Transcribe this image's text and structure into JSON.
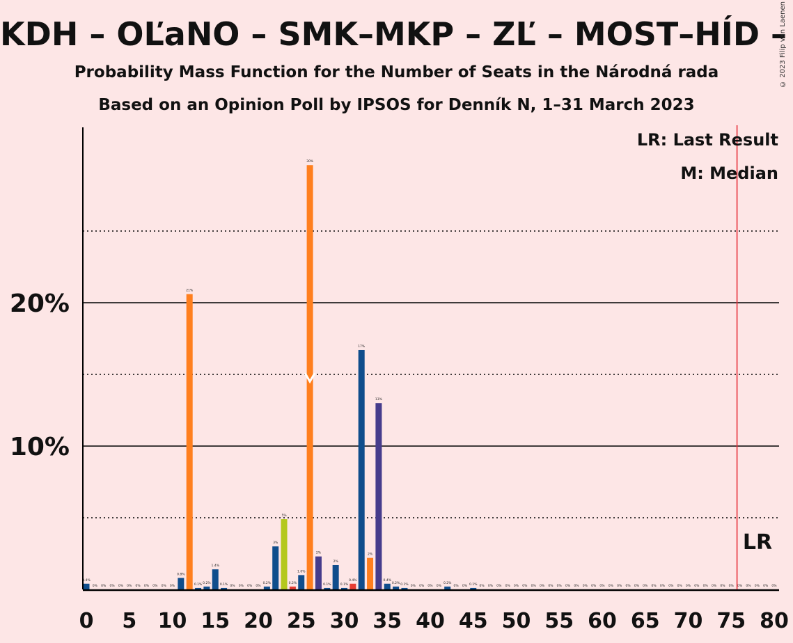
{
  "title": "KDH – OĽaNO – SMK–MKP – ZĽ – MOST–HÍD – PS–S",
  "subtitle1": "Probability Mass Function for the Number of Seats in the Národná rada",
  "subtitle2": "Based on an Opinion Poll by IPSOS for Denník N, 1–31 March 2023",
  "copyright": "© 2023 Filip van Laenen",
  "legend": {
    "lr": "LR: Last Result",
    "median": "M: Median"
  },
  "lr_marker_label": "LR",
  "colors": {
    "background": "#fde6e6",
    "blue": "#0f4d8c",
    "orange": "#ff7f1e",
    "purple": "#463c8c",
    "yellowgreen": "#b4c81e",
    "red": "#e63c32",
    "lr_line": "#e8303a"
  },
  "chart_data": {
    "type": "bar",
    "xlim": [
      0,
      80
    ],
    "ylim": [
      0,
      32
    ],
    "yticks_major": [
      10,
      20
    ],
    "ytick_labels": [
      "10%",
      "20%"
    ],
    "yticks_minor": [
      5,
      15,
      25
    ],
    "xticks": [
      0,
      5,
      10,
      15,
      20,
      25,
      30,
      35,
      40,
      45,
      50,
      55,
      60,
      65,
      70,
      75,
      80
    ],
    "last_result": 76,
    "median": 26,
    "median_y": 14.5,
    "bars": [
      {
        "x": 0,
        "y": 0.4,
        "label": "0.4%",
        "color": "blue"
      },
      {
        "x": 1,
        "y": 0,
        "label": "0%",
        "color": "blue"
      },
      {
        "x": 2,
        "y": 0,
        "label": "0%",
        "color": "blue"
      },
      {
        "x": 3,
        "y": 0,
        "label": "0%",
        "color": "blue"
      },
      {
        "x": 4,
        "y": 0,
        "label": "0%",
        "color": "blue"
      },
      {
        "x": 5,
        "y": 0,
        "label": "0%",
        "color": "blue"
      },
      {
        "x": 6,
        "y": 0,
        "label": "0%",
        "color": "blue"
      },
      {
        "x": 7,
        "y": 0,
        "label": "0%",
        "color": "blue"
      },
      {
        "x": 8,
        "y": 0,
        "label": "0%",
        "color": "blue"
      },
      {
        "x": 9,
        "y": 0,
        "label": "0%",
        "color": "blue"
      },
      {
        "x": 10,
        "y": 0,
        "label": "0%",
        "color": "blue"
      },
      {
        "x": 11,
        "y": 0.8,
        "label": "0.8%",
        "color": "blue"
      },
      {
        "x": 12,
        "y": 20.6,
        "label": "21%",
        "color": "orange"
      },
      {
        "x": 13,
        "y": 0.1,
        "label": "0.1%",
        "color": "blue"
      },
      {
        "x": 14,
        "y": 0.2,
        "label": "0.2%",
        "color": "blue"
      },
      {
        "x": 15,
        "y": 1.4,
        "label": "1.4%",
        "color": "blue"
      },
      {
        "x": 16,
        "y": 0.1,
        "label": "0.1%",
        "color": "blue"
      },
      {
        "x": 17,
        "y": 0,
        "label": "0%",
        "color": "blue"
      },
      {
        "x": 18,
        "y": 0,
        "label": "0%",
        "color": "blue"
      },
      {
        "x": 19,
        "y": 0,
        "label": "0%",
        "color": "blue"
      },
      {
        "x": 20,
        "y": 0,
        "label": "0%",
        "color": "blue"
      },
      {
        "x": 21,
        "y": 0.2,
        "label": "0.2%",
        "color": "blue"
      },
      {
        "x": 22,
        "y": 3,
        "label": "3%",
        "color": "blue"
      },
      {
        "x": 23,
        "y": 4.9,
        "label": "5%",
        "color": "yellowgreen"
      },
      {
        "x": 24,
        "y": 0.2,
        "label": "0.2%",
        "color": "red"
      },
      {
        "x": 25,
        "y": 1.0,
        "label": "1.0%",
        "color": "blue"
      },
      {
        "x": 26,
        "y": 29.6,
        "label": "30%",
        "color": "orange"
      },
      {
        "x": 27,
        "y": 2.3,
        "label": "2%",
        "color": "purple"
      },
      {
        "x": 28,
        "y": 0.1,
        "label": "0.1%",
        "color": "blue"
      },
      {
        "x": 29,
        "y": 1.7,
        "label": "2%",
        "color": "blue"
      },
      {
        "x": 30,
        "y": 0.1,
        "label": "0.1%",
        "color": "blue"
      },
      {
        "x": 31,
        "y": 0.4,
        "label": "0.4%",
        "color": "red"
      },
      {
        "x": 32,
        "y": 16.7,
        "label": "17%",
        "color": "blue"
      },
      {
        "x": 33,
        "y": 2.2,
        "label": "2%",
        "color": "orange"
      },
      {
        "x": 34,
        "y": 13.0,
        "label": "13%",
        "color": "purple"
      },
      {
        "x": 35,
        "y": 0.4,
        "label": "0.4%",
        "color": "blue"
      },
      {
        "x": 36,
        "y": 0.2,
        "label": "0.2%",
        "color": "blue"
      },
      {
        "x": 37,
        "y": 0.1,
        "label": "0.1%",
        "color": "blue"
      },
      {
        "x": 38,
        "y": 0,
        "label": "0%",
        "color": "blue"
      },
      {
        "x": 39,
        "y": 0,
        "label": "0%",
        "color": "blue"
      },
      {
        "x": 40,
        "y": 0,
        "label": "0%",
        "color": "blue"
      },
      {
        "x": 41,
        "y": 0,
        "label": "0%",
        "color": "blue"
      },
      {
        "x": 42,
        "y": 0.2,
        "label": "0.2%",
        "color": "blue"
      },
      {
        "x": 43,
        "y": 0,
        "label": "0%",
        "color": "blue"
      },
      {
        "x": 44,
        "y": 0,
        "label": "0%",
        "color": "blue"
      },
      {
        "x": 45,
        "y": 0.1,
        "label": "0.1%",
        "color": "blue"
      },
      {
        "x": 46,
        "y": 0,
        "label": "0%",
        "color": "blue"
      },
      {
        "x": 47,
        "y": 0,
        "label": "0%",
        "color": "blue"
      },
      {
        "x": 48,
        "y": 0,
        "label": "0%",
        "color": "blue"
      },
      {
        "x": 49,
        "y": 0,
        "label": "0%",
        "color": "blue"
      },
      {
        "x": 50,
        "y": 0,
        "label": "0%",
        "color": "blue"
      },
      {
        "x": 51,
        "y": 0,
        "label": "0%",
        "color": "blue"
      },
      {
        "x": 52,
        "y": 0,
        "label": "0%",
        "color": "blue"
      },
      {
        "x": 53,
        "y": 0,
        "label": "0%",
        "color": "blue"
      },
      {
        "x": 54,
        "y": 0,
        "label": "0%",
        "color": "blue"
      },
      {
        "x": 55,
        "y": 0,
        "label": "0%",
        "color": "blue"
      },
      {
        "x": 56,
        "y": 0,
        "label": "0%",
        "color": "blue"
      },
      {
        "x": 57,
        "y": 0,
        "label": "0%",
        "color": "blue"
      },
      {
        "x": 58,
        "y": 0,
        "label": "0%",
        "color": "blue"
      },
      {
        "x": 59,
        "y": 0,
        "label": "0%",
        "color": "blue"
      },
      {
        "x": 60,
        "y": 0,
        "label": "0%",
        "color": "blue"
      },
      {
        "x": 61,
        "y": 0,
        "label": "0%",
        "color": "blue"
      },
      {
        "x": 62,
        "y": 0,
        "label": "0%",
        "color": "blue"
      },
      {
        "x": 63,
        "y": 0,
        "label": "0%",
        "color": "blue"
      },
      {
        "x": 64,
        "y": 0,
        "label": "0%",
        "color": "blue"
      },
      {
        "x": 65,
        "y": 0,
        "label": "0%",
        "color": "blue"
      },
      {
        "x": 66,
        "y": 0,
        "label": "0%",
        "color": "blue"
      },
      {
        "x": 67,
        "y": 0,
        "label": "0%",
        "color": "blue"
      },
      {
        "x": 68,
        "y": 0,
        "label": "0%",
        "color": "blue"
      },
      {
        "x": 69,
        "y": 0,
        "label": "0%",
        "color": "blue"
      },
      {
        "x": 70,
        "y": 0,
        "label": "0%",
        "color": "blue"
      },
      {
        "x": 71,
        "y": 0,
        "label": "0%",
        "color": "blue"
      },
      {
        "x": 72,
        "y": 0,
        "label": "0%",
        "color": "blue"
      },
      {
        "x": 73,
        "y": 0,
        "label": "0%",
        "color": "blue"
      },
      {
        "x": 74,
        "y": 0,
        "label": "0%",
        "color": "blue"
      },
      {
        "x": 75,
        "y": 0,
        "label": "0%",
        "color": "blue"
      },
      {
        "x": 76,
        "y": 0,
        "label": "0%",
        "color": "blue"
      },
      {
        "x": 77,
        "y": 0,
        "label": "0%",
        "color": "blue"
      },
      {
        "x": 78,
        "y": 0,
        "label": "0%",
        "color": "blue"
      },
      {
        "x": 79,
        "y": 0,
        "label": "0%",
        "color": "blue"
      },
      {
        "x": 80,
        "y": 0,
        "label": "0%",
        "color": "blue"
      }
    ]
  }
}
